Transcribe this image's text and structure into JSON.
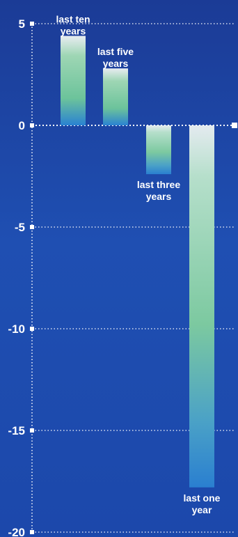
{
  "chart_data": {
    "type": "bar",
    "categories": [
      "last ten years",
      "last five years",
      "last three years",
      "last one year"
    ],
    "category_label_lines": [
      [
        "last ten",
        "years"
      ],
      [
        "last five",
        "years"
      ],
      [
        "last three",
        "years"
      ],
      [
        "last one",
        "year"
      ]
    ],
    "values": [
      4.4,
      2.8,
      -2.4,
      -17.8
    ],
    "ylim": [
      -20,
      5
    ],
    "yticks": [
      5,
      0,
      -5,
      -10,
      -15,
      -20
    ],
    "ytick_labels": [
      "5",
      "0",
      "-5",
      "-10",
      "-15",
      "-20"
    ],
    "grid": true,
    "colors": {
      "bar_top": "#eef3f3",
      "bar_mid": "#7fcaa0",
      "bar_bottom": "#2a7fd0",
      "grid": "#ffffff",
      "text": "#ffffff"
    }
  }
}
